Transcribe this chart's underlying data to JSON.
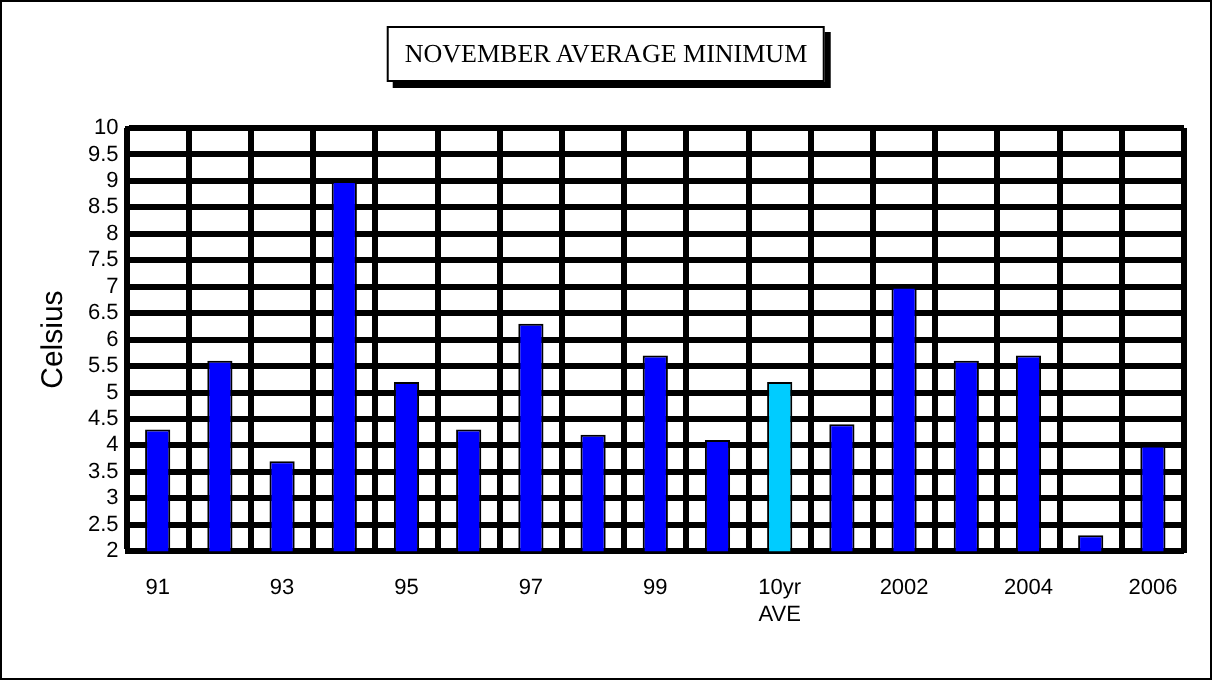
{
  "chart_data": {
    "type": "bar",
    "title": "NOVEMBER AVERAGE MINIMUM",
    "ylabel": "Celsius",
    "categories": [
      "91",
      null,
      "93",
      null,
      "95",
      null,
      "97",
      null,
      "99",
      null,
      "10yr AVE",
      null,
      "2002",
      null,
      "2004",
      null,
      "2006"
    ],
    "values": [
      4.3,
      5.6,
      3.7,
      9.0,
      5.2,
      4.3,
      6.3,
      4.2,
      5.7,
      4.1,
      5.2,
      4.4,
      7.0,
      5.6,
      5.7,
      2.3,
      4.0
    ],
    "colors": [
      "#0000ff",
      "#0000ff",
      "#0000ff",
      "#0000ff",
      "#0000ff",
      "#0000ff",
      "#0000ff",
      "#0000ff",
      "#0000ff",
      "#0000ff",
      "#00ccff",
      "#0000ff",
      "#0000ff",
      "#0000ff",
      "#0000ff",
      "#0000ff",
      "#0000ff"
    ],
    "ylim": [
      2,
      10
    ],
    "yticks": [
      2,
      2.5,
      3,
      3.5,
      4,
      4.5,
      5,
      5.5,
      6,
      6.5,
      7,
      7.5,
      8,
      8.5,
      9,
      9.5,
      10
    ],
    "grid": true
  }
}
